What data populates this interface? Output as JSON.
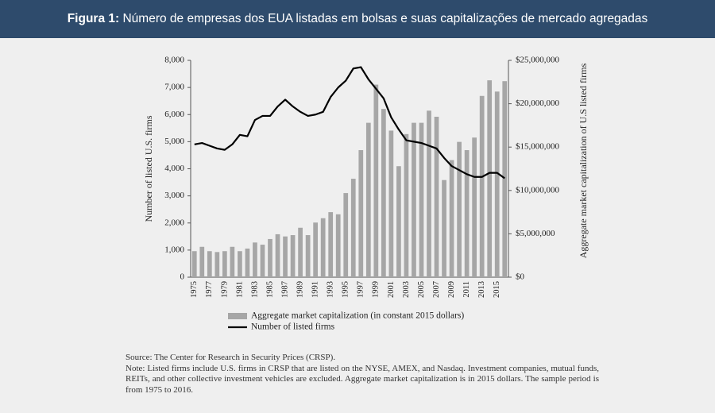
{
  "header": {
    "label": "Figura 1:",
    "title": "Número de empresas dos EUA listadas em bolsas e suas capitalizações de mercado agregadas"
  },
  "chart_data": {
    "type": "bar",
    "ylabel": "Number of listed U.S. firms",
    "y2label": "Aggregate market capitalization of U.S listed firms",
    "categories": [
      "1975",
      null,
      "1977",
      null,
      "1979",
      null,
      "1981",
      null,
      "1983",
      null,
      "1985",
      null,
      "1987",
      null,
      "1989",
      null,
      "1991",
      null,
      "1993",
      null,
      "1995",
      null,
      "1997",
      null,
      "1999",
      null,
      "2001",
      null,
      "2003",
      null,
      "2005",
      null,
      "2007",
      null,
      "2009",
      null,
      "2011",
      null,
      "2013",
      null,
      "2015",
      null
    ],
    "series": [
      {
        "name": "Aggregate market capitalization (in constant 2015 dollars)",
        "color": "#a6a6a6",
        "type": "bar",
        "axis": "y2",
        "values": [
          3000000,
          3500000,
          3000000,
          2900000,
          3000000,
          3500000,
          3000000,
          3300000,
          4000000,
          3750000,
          4400000,
          4950000,
          4700000,
          4850000,
          5700000,
          4850000,
          6300000,
          6800000,
          7500000,
          7250000,
          9700000,
          11350000,
          14650000,
          17800000,
          22200000,
          19400000,
          16900000,
          12800000,
          16500000,
          17800000,
          17800000,
          19200000,
          18500000,
          11200000,
          13500000,
          15600000,
          14650000,
          16100000,
          20900000,
          22700000,
          21400000,
          22600000
        ]
      },
      {
        "name": "Number of listed firms",
        "color": "#000000",
        "type": "line",
        "values": [
          4900,
          4950,
          4850,
          4750,
          4700,
          4900,
          5250,
          5200,
          5800,
          5950,
          5950,
          6300,
          6550,
          6300,
          6100,
          5950,
          6000,
          6100,
          6650,
          7000,
          7250,
          7700,
          7750,
          7300,
          6950,
          6600,
          5900,
          5450,
          5050,
          5000,
          4950,
          4850,
          4750,
          4400,
          4100,
          3950,
          3800,
          3700,
          3700,
          3850,
          3850,
          3650
        ]
      }
    ],
    "ylim": [
      0,
      8000
    ],
    "yticks": [
      0,
      {
        "value": 1000,
        "label": "1,000"
      },
      {
        "value": 2000,
        "label": "2,000"
      },
      {
        "value": 3000,
        "label": "3,000"
      },
      {
        "value": 4000,
        "label": "4,000"
      },
      {
        "value": 5000,
        "label": "5,000"
      },
      {
        "value": 6000,
        "label": "6,000"
      },
      {
        "value": 7000,
        "label": "7,000"
      },
      {
        "value": 8000,
        "label": "8,000"
      }
    ],
    "y2lim": [
      0,
      25000000
    ],
    "y2ticks": [
      {
        "value": 0,
        "label": "$0"
      },
      {
        "value": 5000000,
        "label": "$5,000,000"
      },
      {
        "value": 10000000,
        "label": "$10,000,000"
      },
      {
        "value": 15000000,
        "label": "$15,000,000"
      },
      {
        "value": 20000000,
        "label": "$20,000,000"
      },
      {
        "value": 25000000,
        "label": "$25,000,000"
      }
    ],
    "grid": false
  },
  "notes": {
    "source": "Source: The Center for Research in Security Prices (CRSP).",
    "note": "Note: Listed firms include U.S. firms in CRSP that are listed on the NYSE, AMEX, and Nasdaq. Investment companies, mutual funds, REITs, and other collective investment vehicles are excluded. Aggregate market capitalization is in 2015 dollars. The sample period is from 1975 to 2016."
  }
}
